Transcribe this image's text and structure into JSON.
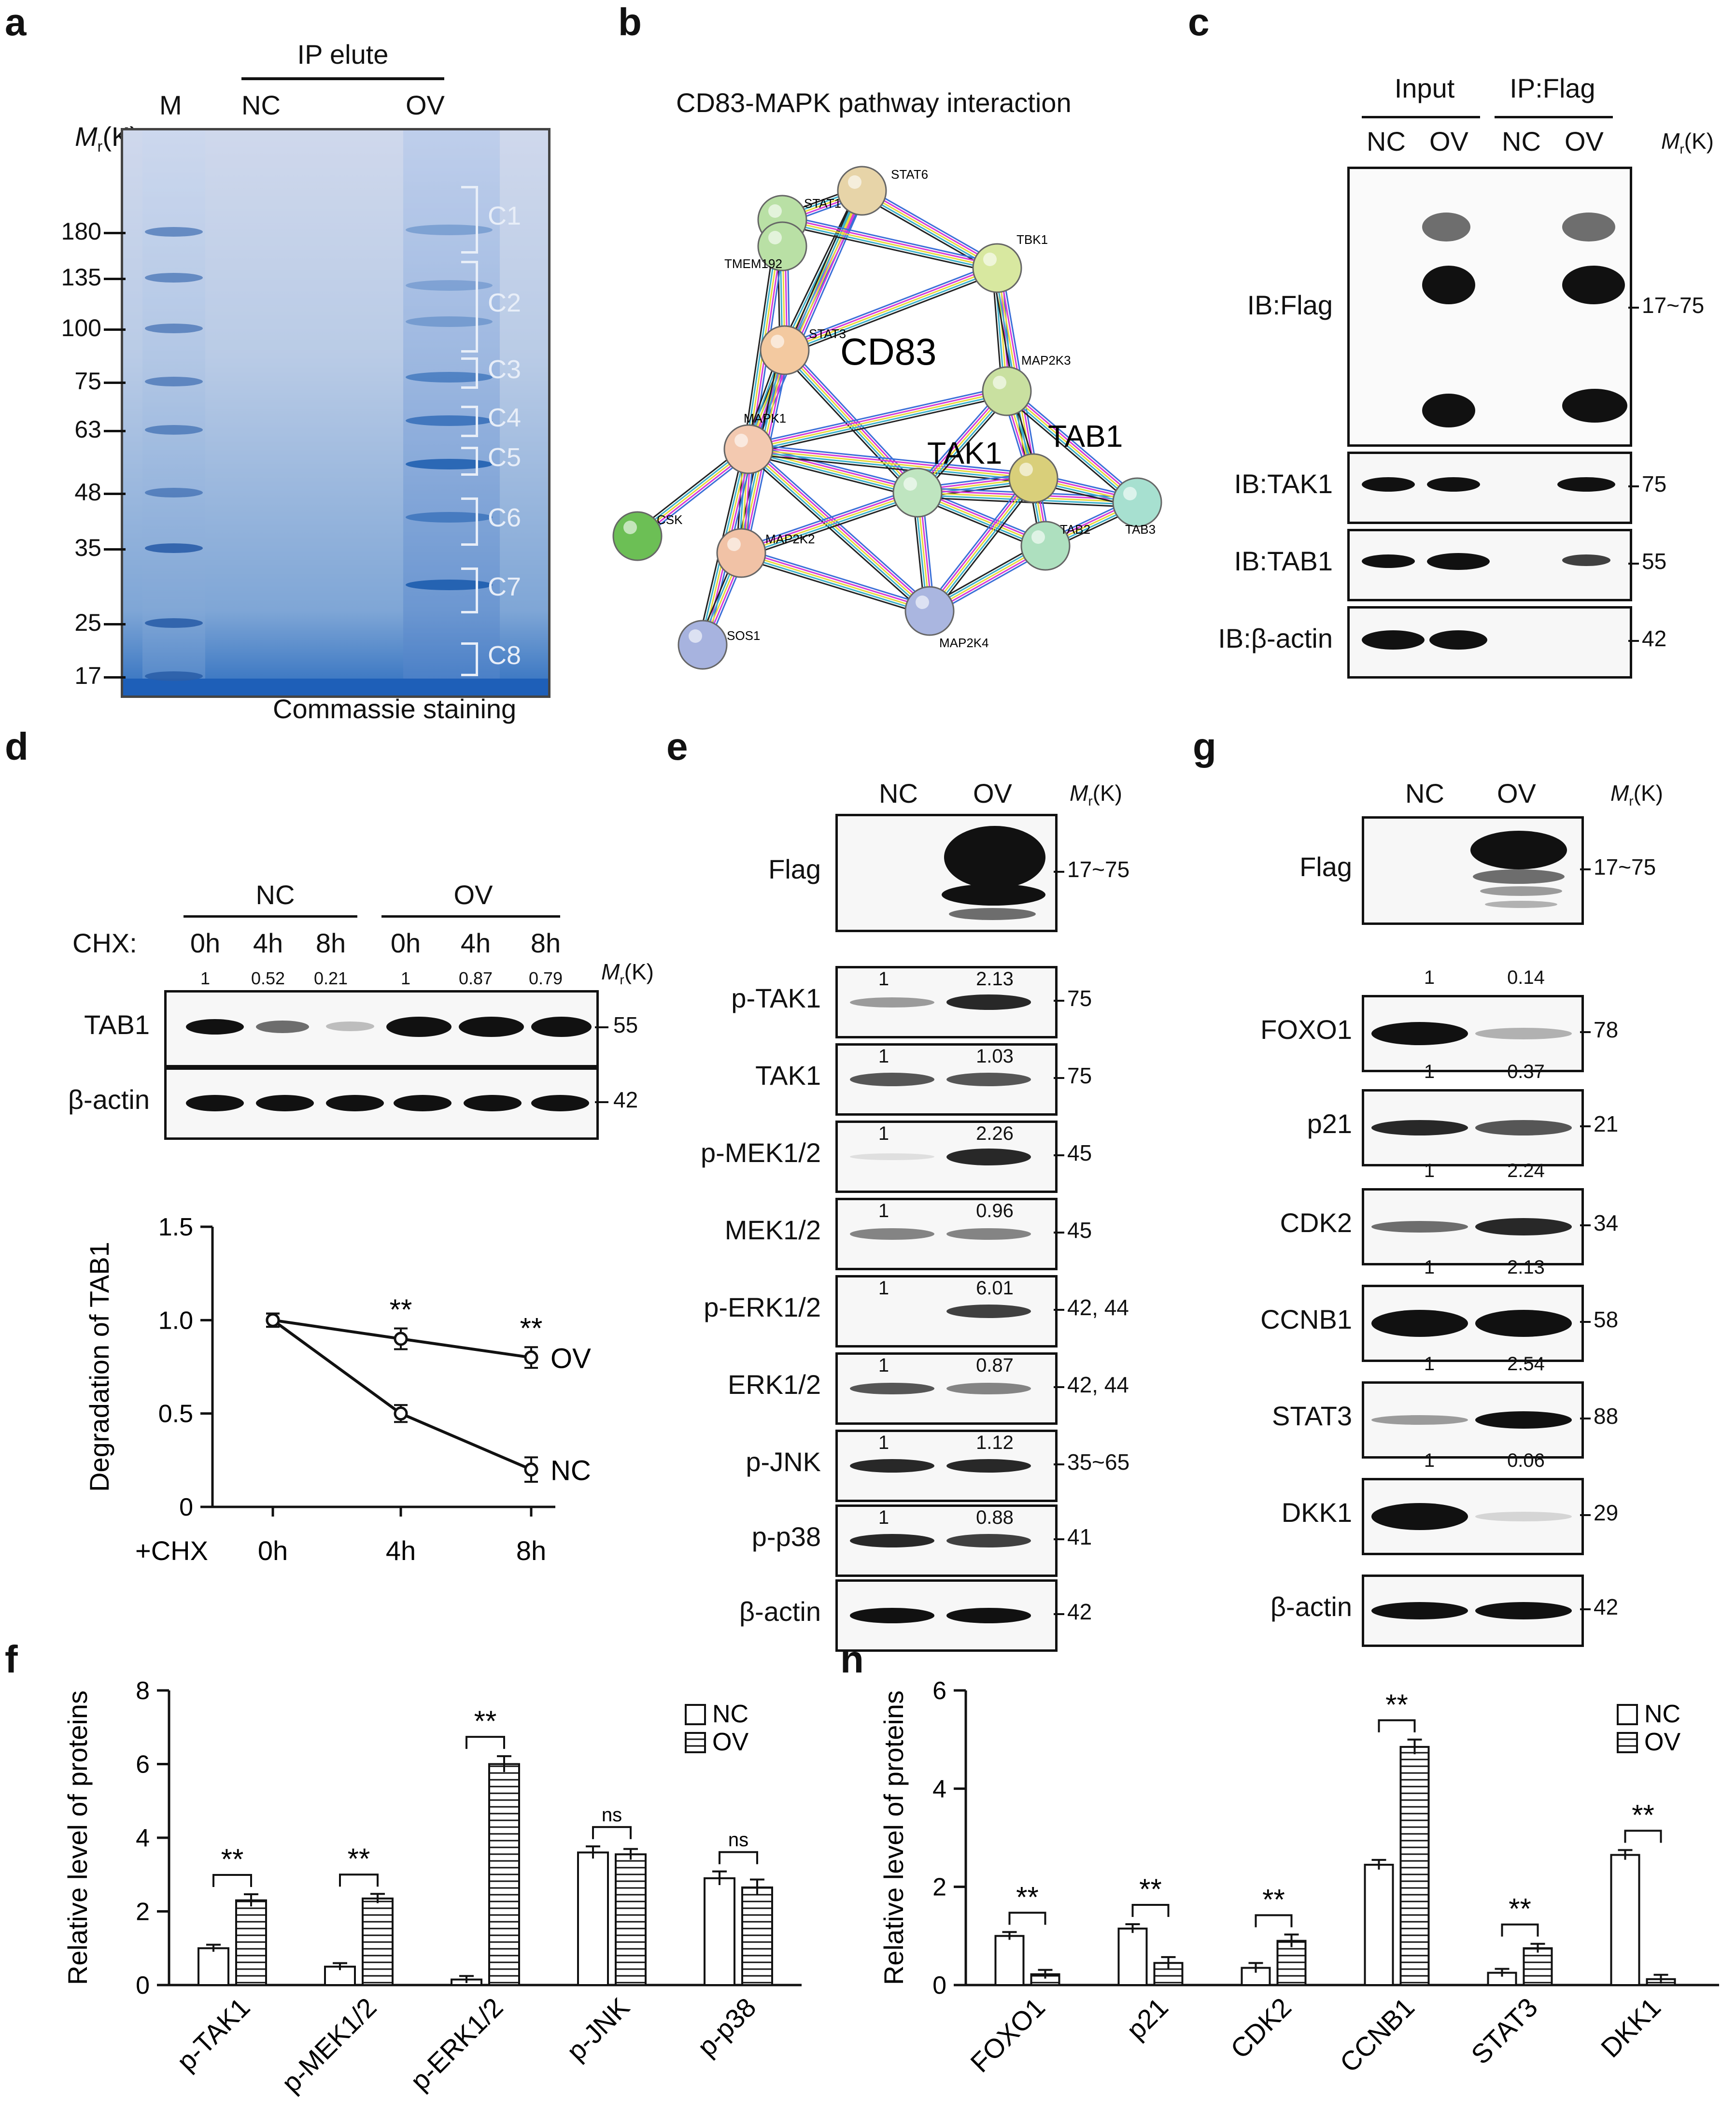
{
  "panels": {
    "a": {
      "label": "a",
      "title": "IP elute",
      "lanes": [
        "M",
        "NC",
        "OV"
      ],
      "mr_label": "M",
      "mr_sub": "r",
      "mr_unit": "(K)",
      "markers": [
        "180",
        "135",
        "100",
        "75",
        "63",
        "48",
        "35",
        "25",
        "17"
      ],
      "fractions": [
        "C1",
        "C2",
        "C3",
        "C4",
        "C5",
        "C6",
        "C7",
        "C8"
      ],
      "caption": "Commassie staining"
    },
    "b": {
      "label": "b",
      "title": "CD83-MAPK pathway interaction",
      "center_label": "CD83",
      "big_labels": [
        "TAK1",
        "TAB1"
      ],
      "nodes": [
        "STAT6",
        "STAT1",
        "TMEM192",
        "TBK1",
        "STAT3",
        "MAP2K3",
        "MAPK1",
        "CSK",
        "MAP2K2",
        "TAB2",
        "TAB3",
        "MAP2K4",
        "SOS1"
      ]
    },
    "c": {
      "label": "c",
      "group1": "Input",
      "group2": "IP:Flag",
      "lanes": [
        "NC",
        "OV",
        "NC",
        "OV"
      ],
      "rows": [
        {
          "name": "IB:Flag",
          "mr": "17~75"
        },
        {
          "name": "IB:TAK1",
          "mr": "75"
        },
        {
          "name": "IB:TAB1",
          "mr": "55"
        },
        {
          "name": "IB:β-actin",
          "mr": "42"
        }
      ]
    },
    "d": {
      "label": "d",
      "groups": [
        "NC",
        "OV"
      ],
      "chx_label": "CHX:",
      "times": [
        "0h",
        "4h",
        "8h",
        "0h",
        "4h",
        "8h"
      ],
      "quant": [
        "1",
        "0.52",
        "0.21",
        "1",
        "0.87",
        "0.79"
      ],
      "rows": [
        {
          "name": "TAB1",
          "mr": "55"
        },
        {
          "name": "β-actin",
          "mr": "42"
        }
      ]
    },
    "e": {
      "label": "e",
      "lanes": [
        "NC",
        "OV"
      ],
      "rows": [
        {
          "name": "Flag",
          "mr": "17~75",
          "q1": "",
          "q2": ""
        },
        {
          "name": "p-TAK1",
          "mr": "75",
          "q1": "1",
          "q2": "2.13"
        },
        {
          "name": "TAK1",
          "mr": "75",
          "q1": "1",
          "q2": "1.03"
        },
        {
          "name": "p-MEK1/2",
          "mr": "45",
          "q1": "1",
          "q2": "2.26"
        },
        {
          "name": "MEK1/2",
          "mr": "45",
          "q1": "1",
          "q2": "0.96"
        },
        {
          "name": "p-ERK1/2",
          "mr": "42, 44",
          "q1": "1",
          "q2": "6.01"
        },
        {
          "name": "ERK1/2",
          "mr": "42, 44",
          "q1": "1",
          "q2": "0.87"
        },
        {
          "name": "p-JNK",
          "mr": "35~65",
          "q1": "1",
          "q2": "1.12"
        },
        {
          "name": "p-p38",
          "mr": "41",
          "q1": "1",
          "q2": "0.88"
        },
        {
          "name": "β-actin",
          "mr": "42",
          "q1": "",
          "q2": ""
        }
      ]
    },
    "g": {
      "label": "g",
      "lanes": [
        "NC",
        "OV"
      ],
      "rows": [
        {
          "name": "Flag",
          "mr": "17~75",
          "q1": "",
          "q2": ""
        },
        {
          "name": "FOXO1",
          "mr": "78",
          "q1": "1",
          "q2": "0.14"
        },
        {
          "name": "p21",
          "mr": "21",
          "q1": "1",
          "q2": "0.37"
        },
        {
          "name": "CDK2",
          "mr": "34",
          "q1": "1",
          "q2": "2.24"
        },
        {
          "name": "CCNB1",
          "mr": "58",
          "q1": "1",
          "q2": "2.13"
        },
        {
          "name": "STAT3",
          "mr": "88",
          "q1": "1",
          "q2": "2.54"
        },
        {
          "name": "DKK1",
          "mr": "29",
          "q1": "1",
          "q2": "0.06"
        },
        {
          "name": "β-actin",
          "mr": "42",
          "q1": "",
          "q2": ""
        }
      ]
    },
    "f": {
      "label": "f"
    },
    "h": {
      "label": "h"
    }
  },
  "chart_data": [
    {
      "id": "d-degradation",
      "type": "line",
      "ylabel": "Degradation of TAB1",
      "xlabel_prefix": "+CHX",
      "categories": [
        "0h",
        "4h",
        "8h"
      ],
      "ylim": [
        0,
        1.5
      ],
      "yticks": [
        "0",
        "0.5",
        "1.0",
        "1.5"
      ],
      "series": [
        {
          "name": "OV",
          "values": [
            1.0,
            0.9,
            0.8
          ],
          "errors": [
            0.02,
            0.04,
            0.04
          ]
        },
        {
          "name": "NC",
          "values": [
            1.0,
            0.5,
            0.2
          ],
          "errors": [
            0.02,
            0.03,
            0.05
          ]
        }
      ],
      "annotations": [
        "**",
        "**"
      ]
    },
    {
      "id": "f-bars",
      "type": "bar",
      "ylabel": "Relative level of proteins",
      "categories": [
        "p-TAK1",
        "p-MEK1/2",
        "p-ERK1/2",
        "p-JNK",
        "p-p38"
      ],
      "ylim": [
        0,
        8
      ],
      "yticks": [
        "0",
        "2",
        "4",
        "6",
        "8"
      ],
      "series": [
        {
          "name": "NC",
          "values": [
            1.0,
            0.5,
            0.15,
            3.6,
            2.9
          ],
          "errors": [
            0.03,
            0.03,
            0.03,
            0.1,
            0.12
          ]
        },
        {
          "name": "OV",
          "values": [
            2.3,
            2.35,
            6.0,
            3.55,
            2.65
          ],
          "errors": [
            0.1,
            0.06,
            0.15,
            0.08,
            0.15
          ]
        }
      ],
      "significance": [
        "**",
        "**",
        "**",
        "ns",
        "ns"
      ]
    },
    {
      "id": "h-bars",
      "type": "bar",
      "ylabel": "Relative level of proteins",
      "categories": [
        "FOXO1",
        "p21",
        "CDK2",
        "CCNB1",
        "STAT3",
        "DKK1"
      ],
      "ylim": [
        0,
        6
      ],
      "yticks": [
        "0",
        "2",
        "4",
        "6"
      ],
      "series": [
        {
          "name": "NC",
          "values": [
            1.0,
            1.15,
            0.35,
            2.45,
            0.25,
            2.65
          ],
          "errors": [
            0.03,
            0.04,
            0.05,
            0.05,
            0.03,
            0.05
          ]
        },
        {
          "name": "OV",
          "values": [
            0.22,
            0.45,
            0.9,
            4.85,
            0.75,
            0.12
          ],
          "errors": [
            0.04,
            0.07,
            0.08,
            0.1,
            0.04,
            0.04
          ]
        }
      ],
      "significance": [
        "**",
        "**",
        "**",
        "**",
        "**",
        "**"
      ]
    }
  ]
}
